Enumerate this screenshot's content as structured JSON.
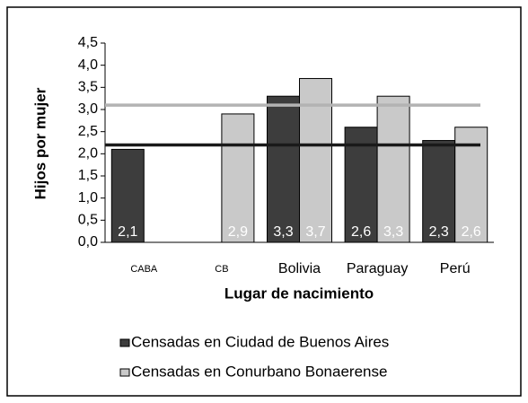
{
  "chart_data": {
    "type": "bar",
    "x_label": "Lugar de nacimiento",
    "y_label": "Hijos por mujer",
    "categories": [
      "CABA",
      "CB",
      "Bolivia",
      "Paraguay",
      "Perú"
    ],
    "series": [
      {
        "name": "Censadas en Ciudad de Buenos Aires",
        "color": "#3d3d3d",
        "values": [
          2.1,
          null,
          3.3,
          2.6,
          2.3
        ],
        "value_labels": [
          "2,1",
          null,
          "3,3",
          "2,6",
          "2,3"
        ]
      },
      {
        "name": "Censadas en Conurbano Bonaerense",
        "color": "#c9c9c9",
        "values": [
          null,
          2.9,
          3.7,
          3.3,
          2.6
        ],
        "value_labels": [
          null,
          "2,9",
          "3,7",
          "3,3",
          "2,6"
        ]
      }
    ],
    "reference_lines": [
      {
        "value": 2.2,
        "color": "#1a1a1a"
      },
      {
        "value": 3.1,
        "color": "#b3b3b3"
      }
    ],
    "ylim": [
      0,
      4.5
    ],
    "yticks": [
      {
        "value": 0,
        "label": "0,0"
      },
      {
        "value": 0.5,
        "label": "0,5"
      },
      {
        "value": 1,
        "label": "1,0"
      },
      {
        "value": 1.5,
        "label": "1,5"
      },
      {
        "value": 2,
        "label": "2,0"
      },
      {
        "value": 2.5,
        "label": "2,5"
      },
      {
        "value": 3,
        "label": "3,0"
      },
      {
        "value": 3.5,
        "label": "3,5"
      },
      {
        "value": 4,
        "label": "4,0"
      },
      {
        "value": 4.5,
        "label": "4,5"
      }
    ],
    "legend": "bottom"
  }
}
